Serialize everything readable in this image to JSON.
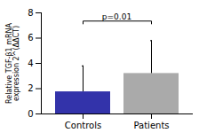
{
  "chart_data": {
    "type": "bar",
    "categories": [
      "Controls",
      "Patients"
    ],
    "values": [
      1.75,
      3.2
    ],
    "errors_upper": [
      2.05,
      2.6
    ],
    "colors": [
      "#3333AA",
      "#AAAAAA"
    ],
    "ylabel": "Relative TGF-β1 mRNA\nexpression 2^(ΔΔCT)",
    "ylim": [
      0,
      8
    ],
    "yticks": [
      0,
      2,
      4,
      6,
      8
    ],
    "grid": false,
    "annotations": [
      {
        "text": "p=0.01",
        "between": [
          "Controls",
          "Patients"
        ],
        "y": 7.35,
        "tick_drop": 0.25
      }
    ]
  }
}
